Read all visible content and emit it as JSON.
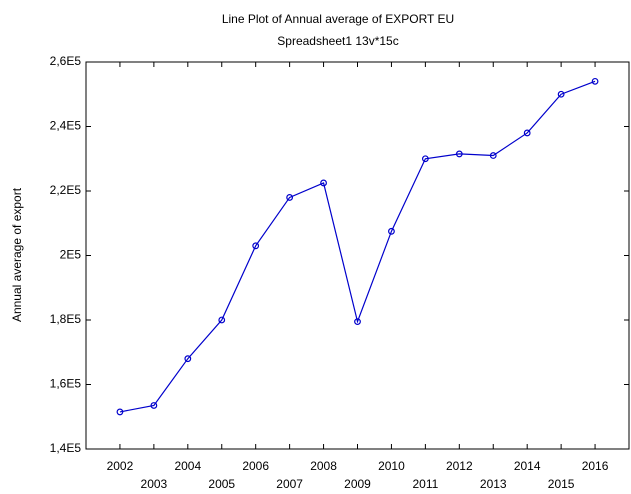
{
  "chart_data": {
    "type": "line",
    "title": "Line Plot of Annual average of EXPORT EU",
    "subtitle": "Spreadsheet1 13v*15c",
    "y_label": "Annual average of export",
    "x": [
      2002,
      2003,
      2004,
      2005,
      2006,
      2007,
      2008,
      2009,
      2010,
      2011,
      2012,
      2013,
      2014,
      2015,
      2016
    ],
    "values": [
      151500,
      153500,
      168000,
      180000,
      203000,
      218000,
      222500,
      179500,
      207500,
      230000,
      231500,
      231000,
      238000,
      250000,
      254000
    ],
    "color": "#0000cc",
    "xlim": [
      2001,
      2017
    ],
    "xticks": [
      2002,
      2003,
      2004,
      2005,
      2006,
      2007,
      2008,
      2009,
      2010,
      2011,
      2012,
      2013,
      2014,
      2015,
      2016
    ],
    "ylim": [
      140000,
      260000
    ],
    "yticks": [
      {
        "value": 140000,
        "label": "1,4E5"
      },
      {
        "value": 160000,
        "label": "1,6E5"
      },
      {
        "value": 180000,
        "label": "1,8E5"
      },
      {
        "value": 200000,
        "label": "2E5"
      },
      {
        "value": 220000,
        "label": "2,2E5"
      },
      {
        "value": 240000,
        "label": "2,4E5"
      },
      {
        "value": 260000,
        "label": "2,6E5"
      }
    ],
    "grid": false
  }
}
